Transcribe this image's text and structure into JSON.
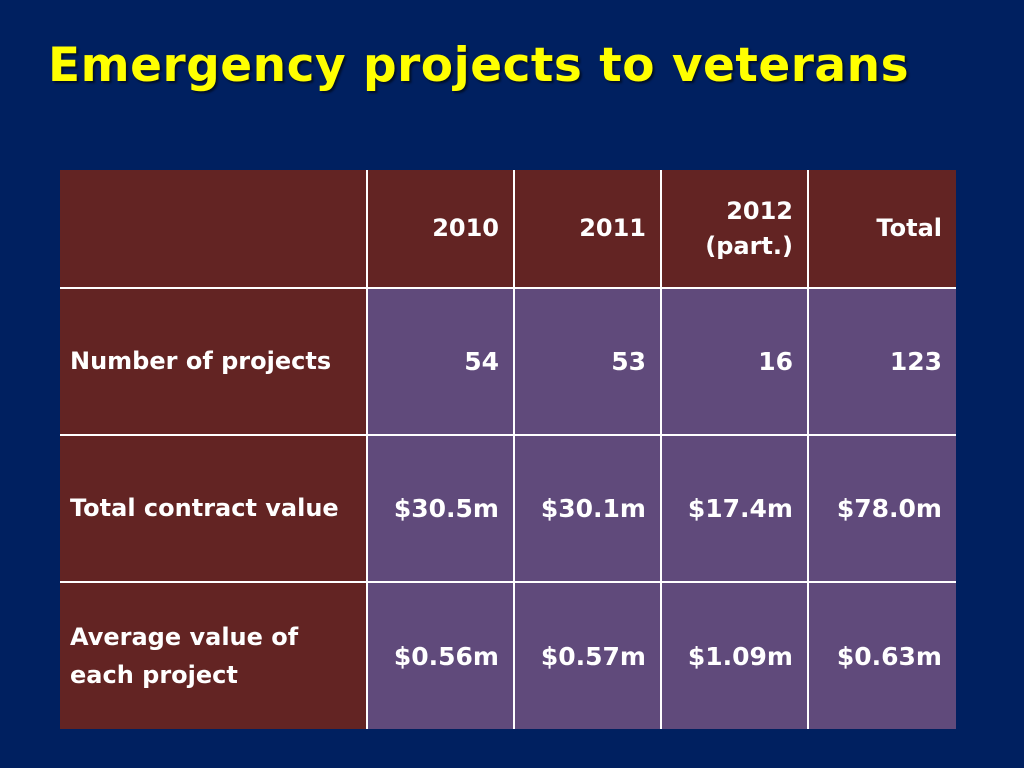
{
  "title": "Emergency projects to veterans",
  "colors": {
    "background": "#002060",
    "title": "#ffff00",
    "header_fill": "#632423",
    "body_fill": "#604a7b",
    "text": "#ffffff"
  },
  "table": {
    "headers": [
      "",
      "2010",
      "2011",
      "2012\n(part.)",
      "Total"
    ],
    "header_2012_line1": "2012",
    "header_2012_line2": "(part.)",
    "rows": [
      {
        "label": "Number of projects",
        "values": [
          "54",
          "53",
          "16",
          "123"
        ]
      },
      {
        "label": "Total contract value",
        "values": [
          "$30.5m",
          "$30.1m",
          "$17.4m",
          "$78.0m"
        ]
      },
      {
        "label_line1": "Average value of",
        "label_line2": "each project",
        "values": [
          "$0.56m",
          "$0.57m",
          "$1.09m",
          "$0.63m"
        ]
      }
    ]
  }
}
